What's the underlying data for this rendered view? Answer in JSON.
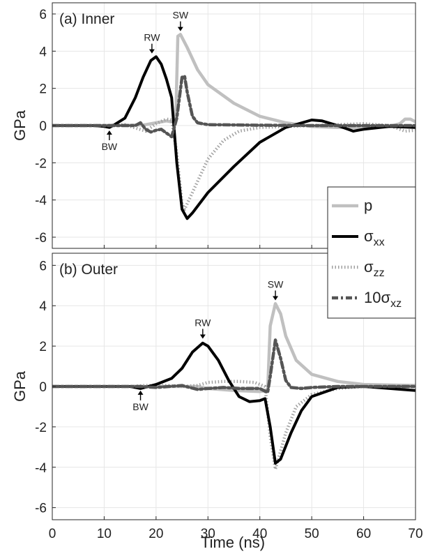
{
  "chart_data": {
    "type": "line",
    "shared": {
      "xlabel": "Time (ns)",
      "xlim": [
        0,
        70
      ],
      "xticks": [
        0,
        10,
        20,
        30,
        40,
        50,
        60,
        70
      ],
      "ylabel": "GPa",
      "ylim": [
        -6.6,
        6.6
      ],
      "yticks": [
        -6,
        -4,
        -2,
        0,
        2,
        4,
        6
      ],
      "grid": true,
      "legend_placement": "right, spanning both panels"
    },
    "legend": [
      {
        "key": "p",
        "base": "p",
        "sub": "",
        "color": "#c0c0c0",
        "dash": "solid"
      },
      {
        "key": "sxx",
        "base": "σ",
        "sub": "xx",
        "color": "#000000",
        "dash": "solid"
      },
      {
        "key": "szz",
        "base": "σ",
        "sub": "zz",
        "color": "#a0a0a0",
        "dash": "dotted"
      },
      {
        "key": "sxz",
        "base": "10σ",
        "sub": "xz",
        "color": "#555555",
        "dash": "dashdot"
      }
    ],
    "panels": [
      {
        "title": "(a) Inner",
        "series": {
          "p": [
            [
              0,
              0
            ],
            [
              10,
              0
            ],
            [
              15,
              0.02
            ],
            [
              18,
              0.05
            ],
            [
              20,
              0.15
            ],
            [
              22,
              0.25
            ],
            [
              23,
              0.2
            ],
            [
              23.8,
              0.3
            ],
            [
              24.2,
              4.8
            ],
            [
              24.7,
              4.9
            ],
            [
              26,
              4.2
            ],
            [
              28,
              3.0
            ],
            [
              30,
              2.2
            ],
            [
              35,
              1.2
            ],
            [
              40,
              0.5
            ],
            [
              45,
              0.15
            ],
            [
              50,
              -0.05
            ],
            [
              55,
              -0.1
            ],
            [
              60,
              -0.1
            ],
            [
              65,
              -0.05
            ],
            [
              67,
              0.1
            ],
            [
              68,
              0.35
            ],
            [
              69,
              0.35
            ],
            [
              70,
              0.2
            ]
          ],
          "sxx": [
            [
              0,
              0
            ],
            [
              8,
              0
            ],
            [
              10,
              -0.05
            ],
            [
              11,
              -0.1
            ],
            [
              12,
              0.05
            ],
            [
              14,
              0.4
            ],
            [
              16,
              1.5
            ],
            [
              17.5,
              2.6
            ],
            [
              19,
              3.5
            ],
            [
              20,
              3.7
            ],
            [
              21,
              3.3
            ],
            [
              22,
              2.5
            ],
            [
              23,
              1.5
            ],
            [
              24,
              -2.0
            ],
            [
              25,
              -4.5
            ],
            [
              26,
              -5.0
            ],
            [
              27,
              -4.7
            ],
            [
              30,
              -3.6
            ],
            [
              35,
              -2.2
            ],
            [
              40,
              -0.9
            ],
            [
              45,
              -0.1
            ],
            [
              50,
              0.3
            ],
            [
              52,
              0.25
            ],
            [
              55,
              0
            ],
            [
              57,
              -0.2
            ],
            [
              58,
              -0.3
            ],
            [
              60,
              -0.2
            ],
            [
              65,
              -0.05
            ],
            [
              70,
              -0.1
            ]
          ],
          "szz": [
            [
              0,
              0
            ],
            [
              10,
              0
            ],
            [
              14,
              0.05
            ],
            [
              18,
              -0.3
            ],
            [
              20,
              0.1
            ],
            [
              22,
              0.35
            ],
            [
              23,
              0.3
            ],
            [
              24,
              -1.5
            ],
            [
              25,
              -4.2
            ],
            [
              25.5,
              -4.5
            ],
            [
              26,
              -4.2
            ],
            [
              28,
              -3.0
            ],
            [
              30,
              -1.8
            ],
            [
              33,
              -0.8
            ],
            [
              36,
              -0.3
            ],
            [
              40,
              -0.1
            ],
            [
              50,
              0
            ],
            [
              60,
              0.1
            ],
            [
              65,
              0
            ],
            [
              68,
              -0.3
            ],
            [
              70,
              -0.25
            ]
          ],
          "sxz": [
            [
              0,
              0
            ],
            [
              10,
              0
            ],
            [
              13,
              0
            ],
            [
              16,
              0
            ],
            [
              17,
              0.15
            ],
            [
              18,
              -0.2
            ],
            [
              19,
              -0.35
            ],
            [
              20,
              -0.25
            ],
            [
              21,
              -0.2
            ],
            [
              22,
              -0.4
            ],
            [
              23,
              -0.6
            ],
            [
              24,
              0.4
            ],
            [
              25,
              2.6
            ],
            [
              25.5,
              2.65
            ],
            [
              26,
              1.8
            ],
            [
              27,
              0.5
            ],
            [
              28,
              0.15
            ],
            [
              30,
              0.05
            ],
            [
              40,
              0.02
            ],
            [
              50,
              0
            ],
            [
              60,
              0
            ],
            [
              70,
              0
            ]
          ]
        },
        "annotations": [
          {
            "label": "SW",
            "x": 24.7,
            "y": 5.0,
            "dir": "down"
          },
          {
            "label": "RW",
            "x": 19.2,
            "y": 3.8,
            "dir": "down"
          },
          {
            "label": "BW",
            "x": 11.0,
            "y": -0.15,
            "dir": "up"
          }
        ]
      },
      {
        "title": "(b) Outer",
        "series": {
          "p": [
            [
              0,
              0
            ],
            [
              20,
              0
            ],
            [
              25,
              0
            ],
            [
              28,
              0
            ],
            [
              30,
              -0.1
            ],
            [
              35,
              -0.2
            ],
            [
              40,
              -0.25
            ],
            [
              41.5,
              -0.2
            ],
            [
              42,
              3.0
            ],
            [
              43,
              4.1
            ],
            [
              44,
              3.6
            ],
            [
              45,
              2.5
            ],
            [
              47,
              1.3
            ],
            [
              50,
              0.6
            ],
            [
              55,
              0.25
            ],
            [
              60,
              0.1
            ],
            [
              70,
              0.05
            ]
          ],
          "sxx": [
            [
              0,
              0
            ],
            [
              15,
              0
            ],
            [
              17,
              -0.1
            ],
            [
              20,
              0.1
            ],
            [
              23,
              0.4
            ],
            [
              25,
              0.9
            ],
            [
              27,
              1.7
            ],
            [
              29,
              2.15
            ],
            [
              30,
              2.0
            ],
            [
              32,
              1.3
            ],
            [
              34,
              0.3
            ],
            [
              36,
              -0.5
            ],
            [
              38,
              -0.75
            ],
            [
              40,
              -0.7
            ],
            [
              41,
              -0.6
            ],
            [
              42,
              -2.0
            ],
            [
              43,
              -3.8
            ],
            [
              44,
              -3.6
            ],
            [
              46,
              -2.3
            ],
            [
              48,
              -1.2
            ],
            [
              50,
              -0.5
            ],
            [
              55,
              -0.05
            ],
            [
              60,
              0
            ],
            [
              65,
              -0.1
            ],
            [
              70,
              -0.2
            ]
          ],
          "szz": [
            [
              0,
              0
            ],
            [
              15,
              0
            ],
            [
              18,
              0.05
            ],
            [
              22,
              0.05
            ],
            [
              25,
              0
            ],
            [
              28,
              0.05
            ],
            [
              30,
              0.2
            ],
            [
              33,
              0.25
            ],
            [
              36,
              0.25
            ],
            [
              39,
              0.2
            ],
            [
              41,
              0
            ],
            [
              42,
              -2.5
            ],
            [
              43,
              -4.1
            ],
            [
              44,
              -3.2
            ],
            [
              45,
              -2.3
            ],
            [
              47,
              -1.0
            ],
            [
              50,
              -0.4
            ],
            [
              55,
              -0.1
            ],
            [
              60,
              0
            ],
            [
              70,
              0
            ]
          ],
          "sxz": [
            [
              0,
              0
            ],
            [
              15,
              0
            ],
            [
              17,
              0
            ],
            [
              20,
              -0.05
            ],
            [
              25,
              0.05
            ],
            [
              28,
              -0.15
            ],
            [
              30,
              -0.1
            ],
            [
              33,
              -0.05
            ],
            [
              36,
              -0.1
            ],
            [
              40,
              -0.1
            ],
            [
              41.5,
              -0.3
            ],
            [
              42,
              0.5
            ],
            [
              43,
              2.3
            ],
            [
              44,
              1.4
            ],
            [
              45,
              0.3
            ],
            [
              46,
              -0.05
            ],
            [
              48,
              -0.1
            ],
            [
              50,
              -0.05
            ],
            [
              55,
              0
            ],
            [
              70,
              0
            ]
          ]
        },
        "annotations": [
          {
            "label": "SW",
            "x": 43.0,
            "y": 4.2,
            "dir": "down"
          },
          {
            "label": "RW",
            "x": 29.0,
            "y": 2.3,
            "dir": "down"
          },
          {
            "label": "BW",
            "x": 17.0,
            "y": -0.1,
            "dir": "up"
          }
        ]
      }
    ]
  }
}
